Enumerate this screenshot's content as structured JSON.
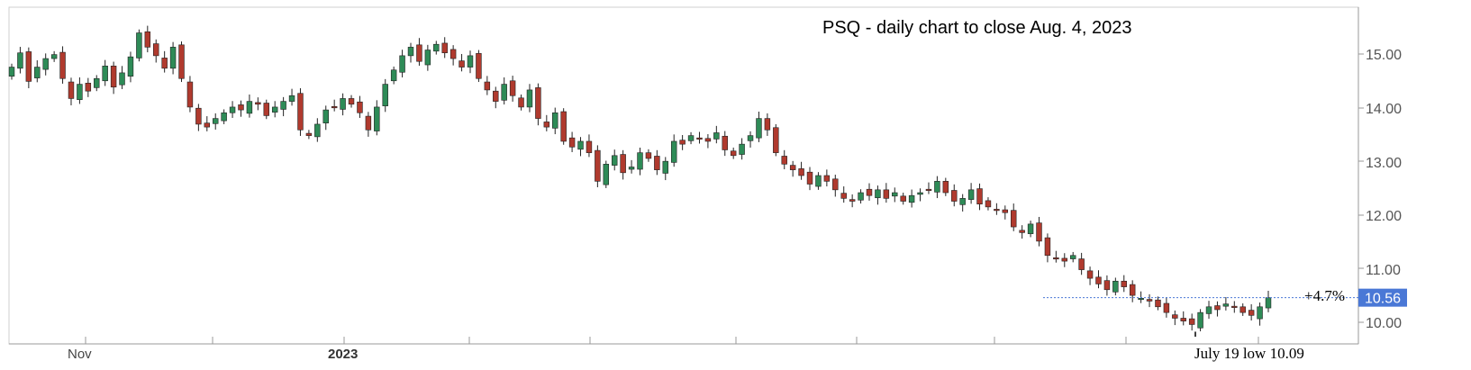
{
  "chart_data": {
    "type": "candlestick",
    "title": "PSQ - daily chart to close Aug. 4, 2023",
    "x_labels": [
      "Nov",
      "2023"
    ],
    "ylim": [
      9.75,
      15.65
    ],
    "y_ticks": [
      "15.00",
      "14.00",
      "13.00",
      "12.00",
      "11.00",
      "10.00"
    ],
    "last_price_label": "10.56",
    "last_price": 10.56,
    "annotations": {
      "change": "+4.7%",
      "low": "July 19 low 10.09",
      "low_value": 10.09
    },
    "colors": {
      "up": "#2e8b57",
      "down": "#b03a2e",
      "badge": "#4a78d6"
    },
    "closes": [
      14.6,
      14.85,
      14.35,
      14.6,
      14.75,
      14.82,
      14.4,
      14.05,
      14.3,
      14.18,
      14.4,
      14.62,
      14.25,
      14.5,
      14.78,
      15.2,
      14.95,
      14.8,
      14.58,
      14.95,
      14.4,
      13.9,
      13.6,
      13.55,
      13.7,
      13.8,
      13.9,
      13.85,
      14.0,
      13.95,
      13.75,
      13.9,
      14.0,
      14.1,
      13.5,
      13.4,
      13.6,
      13.85,
      13.9,
      14.05,
      13.95,
      13.8,
      13.5,
      13.9,
      14.3,
      14.55,
      14.8,
      14.95,
      14.7,
      14.9,
      15.0,
      14.85,
      14.75,
      14.6,
      14.8,
      14.4,
      14.2,
      14.0,
      14.3,
      14.1,
      13.9,
      14.2,
      13.7,
      13.55,
      13.8,
      13.3,
      13.2,
      13.3,
      13.1,
      12.6,
      12.9,
      13.05,
      12.75,
      12.85,
      13.1,
      13.0,
      12.8,
      12.95,
      13.3,
      13.25,
      13.4,
      13.35,
      13.3,
      13.45,
      13.15,
      13.05,
      13.25,
      13.4,
      13.7,
      13.5,
      13.1,
      12.9,
      12.8,
      12.7,
      12.55,
      12.7,
      12.6,
      12.45,
      12.3,
      12.25,
      12.4,
      12.35,
      12.45,
      12.3,
      12.4,
      12.25,
      12.35,
      12.4,
      12.45,
      12.6,
      12.4,
      12.25,
      12.3,
      12.45,
      12.2,
      12.15,
      12.1,
      12.05,
      11.8,
      11.7,
      11.85,
      11.55,
      11.3,
      11.25,
      11.2,
      11.3,
      11.05,
      10.9,
      10.8,
      10.7,
      10.85,
      10.75,
      10.6,
      10.55,
      10.5,
      10.4,
      10.3,
      10.2,
      10.15,
      10.09,
      10.3,
      10.4,
      10.35,
      10.45,
      10.4,
      10.3,
      10.25,
      10.4,
      10.56
    ]
  }
}
